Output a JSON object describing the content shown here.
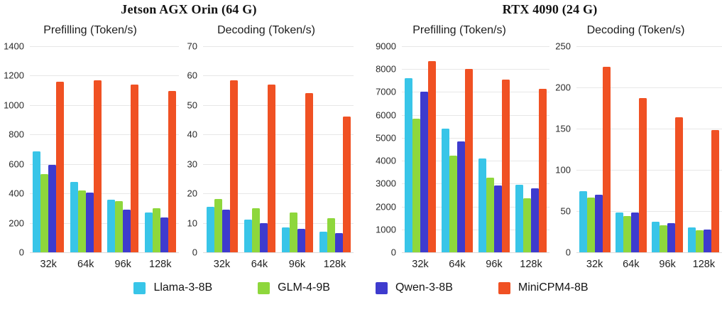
{
  "headers": [
    {
      "title": "Jetson AGX Orin (64 G)"
    },
    {
      "title": "RTX 4090 (24 G)"
    }
  ],
  "legend": [
    {
      "label": "Llama-3-8B",
      "color": "#38c5e8"
    },
    {
      "label": "GLM-4-9B",
      "color": "#8ed73c"
    },
    {
      "label": "Qwen-3-8B",
      "color": "#3e3bce"
    },
    {
      "label": "MiniCPM4-8B",
      "color": "#f05123"
    }
  ],
  "chart_data": [
    {
      "type": "bar",
      "device": "Jetson AGX Orin (64 G)",
      "title": "Prefilling (Token/s)",
      "categories": [
        "32k",
        "64k",
        "96k",
        "128k"
      ],
      "series": [
        {
          "name": "Llama-3-8B",
          "color": "#38c5e8",
          "values": [
            685,
            478,
            355,
            272
          ]
        },
        {
          "name": "GLM-4-9B",
          "color": "#8ed73c",
          "values": [
            530,
            420,
            350,
            300
          ]
        },
        {
          "name": "Qwen-3-8B",
          "color": "#3e3bce",
          "values": [
            593,
            407,
            288,
            235
          ]
        },
        {
          "name": "MiniCPM4-8B",
          "color": "#f05123",
          "values": [
            1160,
            1167,
            1140,
            1097
          ]
        }
      ],
      "ylim": [
        0,
        1400
      ],
      "yticks": [
        0,
        200,
        400,
        600,
        800,
        1000,
        1200,
        1400
      ],
      "grid": true,
      "legend_position": "bottom-shared"
    },
    {
      "type": "bar",
      "device": "Jetson AGX Orin (64 G)",
      "title": "Decoding (Token/s)",
      "categories": [
        "32k",
        "64k",
        "96k",
        "128k"
      ],
      "series": [
        {
          "name": "Llama-3-8B",
          "color": "#38c5e8",
          "values": [
            15.5,
            11,
            8.5,
            7
          ]
        },
        {
          "name": "GLM-4-9B",
          "color": "#8ed73c",
          "values": [
            18,
            15,
            13.5,
            11.5
          ]
        },
        {
          "name": "Qwen-3-8B",
          "color": "#3e3bce",
          "values": [
            14.5,
            10,
            8,
            6.5
          ]
        },
        {
          "name": "MiniCPM4-8B",
          "color": "#f05123",
          "values": [
            58.5,
            57,
            54,
            46
          ]
        }
      ],
      "ylim": [
        0,
        70
      ],
      "yticks": [
        0,
        10,
        20,
        30,
        40,
        50,
        60,
        70
      ],
      "grid": true,
      "legend_position": "bottom-shared"
    },
    {
      "type": "bar",
      "device": "RTX 4090 (24 G)",
      "title": "Prefilling (Token/s)",
      "categories": [
        "32k",
        "64k",
        "96k",
        "128k"
      ],
      "series": [
        {
          "name": "Llama-3-8B",
          "color": "#38c5e8",
          "values": [
            7600,
            5390,
            4100,
            2950
          ]
        },
        {
          "name": "GLM-4-9B",
          "color": "#8ed73c",
          "values": [
            5850,
            4210,
            3260,
            2350
          ]
        },
        {
          "name": "Qwen-3-8B",
          "color": "#3e3bce",
          "values": [
            7010,
            4830,
            2910,
            2800
          ]
        },
        {
          "name": "MiniCPM4-8B",
          "color": "#f05123",
          "values": [
            8360,
            8010,
            7550,
            7150
          ]
        }
      ],
      "ylim": [
        0,
        9000
      ],
      "yticks": [
        0,
        1000,
        2000,
        3000,
        4000,
        5000,
        6000,
        7000,
        8000,
        9000
      ],
      "grid": true,
      "legend_position": "bottom-shared"
    },
    {
      "type": "bar",
      "device": "RTX 4090 (24 G)",
      "title": "Decoding (Token/s)",
      "categories": [
        "32k",
        "64k",
        "96k",
        "128k"
      ],
      "series": [
        {
          "name": "Llama-3-8B",
          "color": "#38c5e8",
          "values": [
            74,
            48,
            37,
            30
          ]
        },
        {
          "name": "GLM-4-9B",
          "color": "#8ed73c",
          "values": [
            66,
            44,
            33,
            27
          ]
        },
        {
          "name": "Qwen-3-8B",
          "color": "#3e3bce",
          "values": [
            70,
            48.5,
            35.5,
            28
          ]
        },
        {
          "name": "MiniCPM4-8B",
          "color": "#f05123",
          "values": [
            225,
            187,
            164,
            148
          ]
        }
      ],
      "ylim": [
        0,
        250
      ],
      "yticks": [
        0,
        50,
        100,
        150,
        200,
        250
      ],
      "grid": true,
      "legend_position": "bottom-shared"
    }
  ]
}
